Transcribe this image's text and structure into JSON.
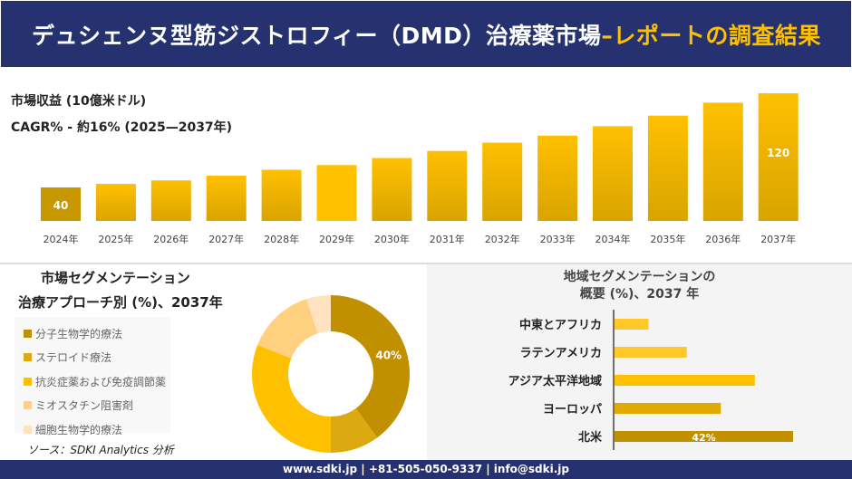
{
  "header": {
    "title_main": "デュシェンヌ型筋ジストロフィー（DMD）治療薬市場",
    "title_accent": "–レポートの調査結果"
  },
  "meta": {
    "revenue_label": "市場収益 (10億米ドル)",
    "cagr_label": "CAGR% - 約16% (2025—2037年)"
  },
  "colors": {
    "header_bg": "#263270",
    "accent": "#ffc000",
    "dark_gold": "#c09000",
    "gold": "#e0aa00"
  },
  "chart_data": [
    {
      "type": "bar",
      "title": "市場収益 (10億米ドル)",
      "categories": [
        "2024年",
        "2025年",
        "2026年",
        "2027年",
        "2028年",
        "2029年",
        "2030年",
        "2031年",
        "2032年",
        "2033年",
        "2034年",
        "2035年",
        "2036年",
        "2037年"
      ],
      "values": [
        40,
        43,
        46,
        50,
        55,
        59,
        65,
        71,
        78,
        84,
        92,
        101,
        112,
        120
      ],
      "data_labels": {
        "0": "40",
        "13": "120"
      },
      "grid": false
    },
    {
      "type": "pie",
      "title": "市場セグメンテーション",
      "subtitle": "治療アプローチ別 (%)、2037年",
      "categories": [
        "分子生物学的療法",
        "ステロイド療法",
        "抗炎症薬および免疫調節薬",
        "ミオスタチン阻害剤",
        "細胞生物学的療法"
      ],
      "values": [
        40,
        10,
        31,
        14,
        5
      ],
      "colors": [
        "#c09000",
        "#dcaa10",
        "#ffc000",
        "#ffd080",
        "#ffe2c0"
      ],
      "data_labels": {
        "0": "40%"
      },
      "legend": "left"
    },
    {
      "type": "bar",
      "orientation": "horizontal",
      "title": "地域セグメンテーションの",
      "subtitle": "概要 (%)、2037 年",
      "categories": [
        "中東とアフリカ",
        "ラテンアメリカ",
        "アジア太平洋地域",
        "ヨーロッパ",
        "北米"
      ],
      "values": [
        8,
        17,
        33,
        25,
        42
      ],
      "colors": [
        "#ffc828",
        "#ffc828",
        "#ffc000",
        "#e0aa00",
        "#c09000"
      ],
      "data_labels": {
        "4": "42%"
      }
    }
  ],
  "source": "ソース：SDKI Analytics 分析",
  "footer": "www.sdki.jp | +81-505-050-9337 | info@sdki.jp"
}
